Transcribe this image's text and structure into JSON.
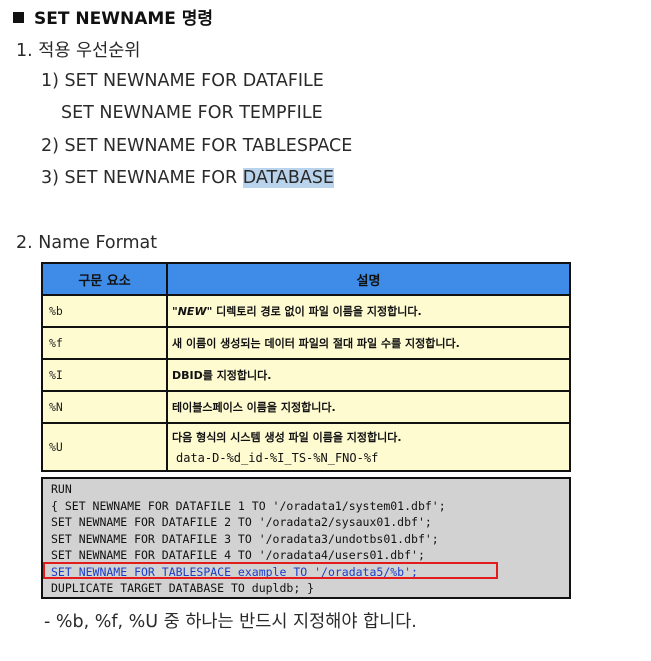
{
  "title": "SET NEWNAME 명령",
  "section1": {
    "heading": "1. 적용 우선순위",
    "items": [
      "1) SET NEWNAME FOR DATAFILE",
      "SET NEWNAME FOR TEMPFILE",
      "2) SET NEWNAME FOR TABLESPACE",
      "3) SET NEWNAME FOR "
    ],
    "highlight_word": "DATABASE"
  },
  "section2": {
    "heading": "2. Name Format",
    "table": {
      "headers": [
        "구문 요소",
        "설명"
      ],
      "rows": [
        {
          "code": "%b",
          "desc_em": "\"NEW\"",
          "desc": " 디렉토리 경로 없이 파일 이름을 지정합니다."
        },
        {
          "code": "%f",
          "desc": "새 이름이 생성되는 데이터 파일의 절대 파일 수를 지정합니다."
        },
        {
          "code": "%I",
          "desc": "DBID를 지정합니다."
        },
        {
          "code": "%N",
          "desc": "테이블스페이스 이름을 지정합니다."
        },
        {
          "code": "%U",
          "desc": "다음 형식의 시스템 생성 파일 이름을 지정합니다.",
          "sub": "data-D-%d_id-%I_TS-%N_FNO-%f"
        }
      ]
    },
    "example_lines": [
      "RUN",
      "{ SET NEWNAME FOR DATAFILE 1 TO '/oradata1/system01.dbf';",
      "SET NEWNAME FOR DATAFILE 2 TO '/oradata2/sysaux01.dbf';",
      "SET NEWNAME FOR DATAFILE 3 TO '/oradata3/undotbs01.dbf';",
      "SET NEWNAME FOR DATAFILE 4 TO '/oradata4/users01.dbf';",
      "SET NEWNAME FOR TABLESPACE example TO '/oradata5/%b';",
      "DUPLICATE TARGET DATABASE TO dupldb; }"
    ]
  },
  "note": "- %b, %f, %U 중 하나는 반드시 지정해야 합니다.",
  "colors": {
    "header_bg": "#3e8ce8",
    "row_bg": "#fefbd1",
    "example_bg": "#d2d2d2",
    "highlight_box": "#e21b1b",
    "blue_text": "#1b3cc9"
  }
}
